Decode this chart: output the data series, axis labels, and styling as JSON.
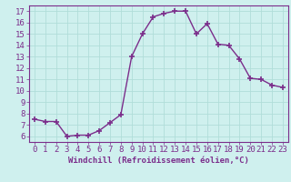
{
  "x": [
    0,
    1,
    2,
    3,
    4,
    5,
    6,
    7,
    8,
    9,
    10,
    11,
    12,
    13,
    14,
    15,
    16,
    17,
    18,
    19,
    20,
    21,
    22,
    23
  ],
  "y": [
    7.5,
    7.3,
    7.3,
    6.0,
    6.1,
    6.1,
    6.5,
    7.2,
    7.9,
    13.0,
    15.0,
    16.5,
    16.8,
    17.0,
    17.0,
    15.0,
    15.9,
    14.1,
    14.0,
    12.8,
    11.1,
    11.0,
    10.5,
    10.3
  ],
  "line_color": "#7b2d8b",
  "marker": "+",
  "markersize": 4,
  "markeredgewidth": 1.2,
  "linewidth": 1.0,
  "bg_color": "#cff0ee",
  "grid_color": "#b0ddd9",
  "xlabel": "Windchill (Refroidissement éolien,°C)",
  "ylim": [
    5.5,
    17.5
  ],
  "xlim": [
    -0.5,
    23.5
  ],
  "yticks": [
    6,
    7,
    8,
    9,
    10,
    11,
    12,
    13,
    14,
    15,
    16,
    17
  ],
  "xticks": [
    0,
    1,
    2,
    3,
    4,
    5,
    6,
    7,
    8,
    9,
    10,
    11,
    12,
    13,
    14,
    15,
    16,
    17,
    18,
    19,
    20,
    21,
    22,
    23
  ],
  "label_color": "#7b2d8b",
  "tick_color": "#7b2d8b",
  "xlabel_fontsize": 6.5,
  "tick_fontsize": 6.5
}
